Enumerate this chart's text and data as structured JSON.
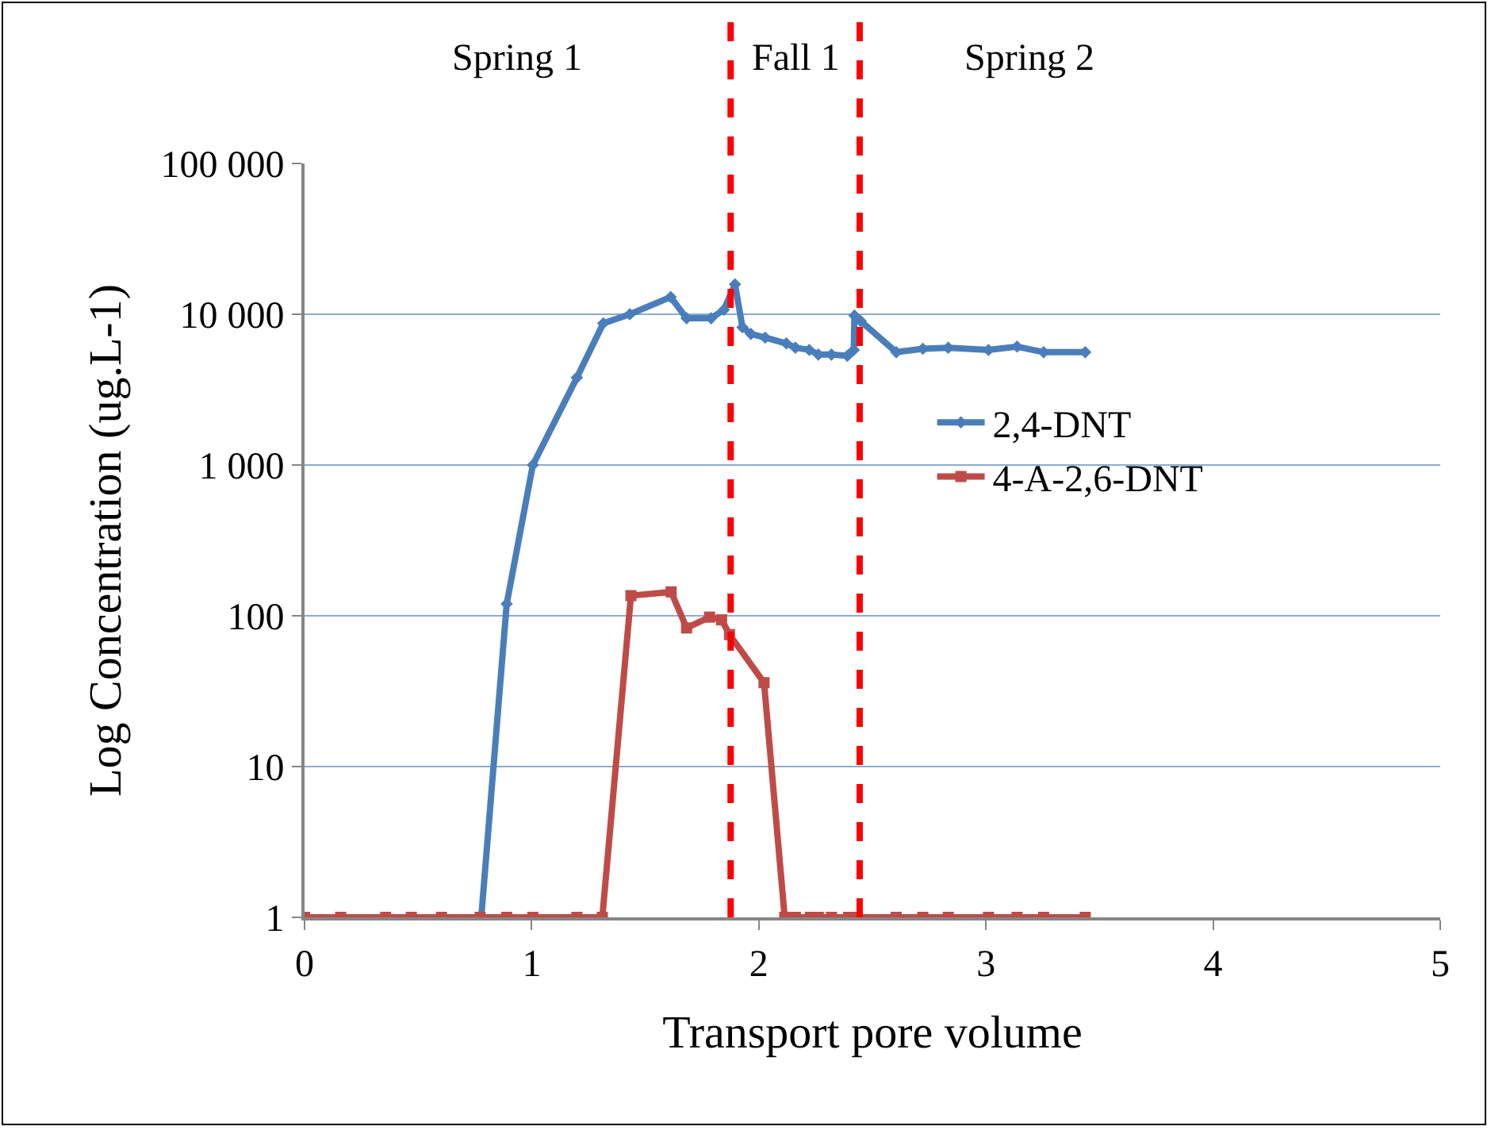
{
  "chart_data": {
    "type": "line",
    "xlabel": "Transport pore volume",
    "ylabel": "Log Concentration (ug.L-1)",
    "log": "y",
    "grid": "y",
    "legend": "right",
    "xlim": [
      0,
      5
    ],
    "xticks": [
      0,
      1,
      2,
      3,
      4,
      5
    ],
    "ylim": [
      1,
      100000
    ],
    "yticks": [
      1,
      10,
      100,
      {
        "value": 1000,
        "label": "1 000"
      },
      {
        "value": 10000,
        "label": "10 000"
      },
      {
        "value": 100000,
        "label": "100 000"
      }
    ],
    "ref_lines": [
      {
        "axis": "x",
        "value": 1.876,
        "color": "#ff0000",
        "line_style": "dashed"
      },
      {
        "axis": "x",
        "value": 2.444,
        "color": "#ff0000",
        "line_style": "dashed"
      }
    ],
    "annotations": [
      "Spring 1",
      "Fall 1",
      "Spring 2"
    ],
    "series": [
      {
        "name": "2,4-DNT",
        "color": "#4a7ebb",
        "marker": "diamond",
        "x": [
          0.778,
          0.89,
          1.005,
          1.199,
          1.315,
          1.432,
          1.612,
          1.682,
          1.79,
          1.846,
          1.895,
          1.928,
          1.965,
          2.028,
          2.121,
          2.161,
          2.222,
          2.262,
          2.32,
          2.39,
          2.418,
          2.421,
          2.449,
          2.605,
          2.722,
          2.834,
          3.011,
          3.137,
          3.254,
          3.437
        ],
        "values": [
          1,
          120,
          1000,
          3800,
          8700,
          10000,
          13000,
          9400,
          9400,
          10700,
          15800,
          8200,
          7400,
          7000,
          6400,
          6000,
          5800,
          5400,
          5400,
          5300,
          5800,
          9800,
          9000,
          5600,
          5900,
          6000,
          5800,
          6100,
          5600,
          5600
        ]
      },
      {
        "name": "4-A-2,6-DNT",
        "color": "#be4b48",
        "marker": "square",
        "x": [
          0,
          0.159,
          0.357,
          0.47,
          0.603,
          0.773,
          0.89,
          1.005,
          1.199,
          1.311,
          1.437,
          1.614,
          1.682,
          1.783,
          1.836,
          1.871,
          2.023,
          2.114,
          2.161,
          2.227,
          2.262,
          2.32,
          2.395,
          2.425,
          2.605,
          2.722,
          2.834,
          3.011,
          3.137,
          3.254,
          3.437
        ],
        "values": [
          1,
          1,
          1,
          1,
          1,
          1,
          1,
          1,
          1,
          1,
          136,
          144,
          83,
          98,
          94,
          75,
          36,
          1,
          1,
          1,
          1,
          1,
          1,
          1,
          1,
          1,
          1,
          1,
          1,
          1,
          1
        ]
      }
    ]
  }
}
